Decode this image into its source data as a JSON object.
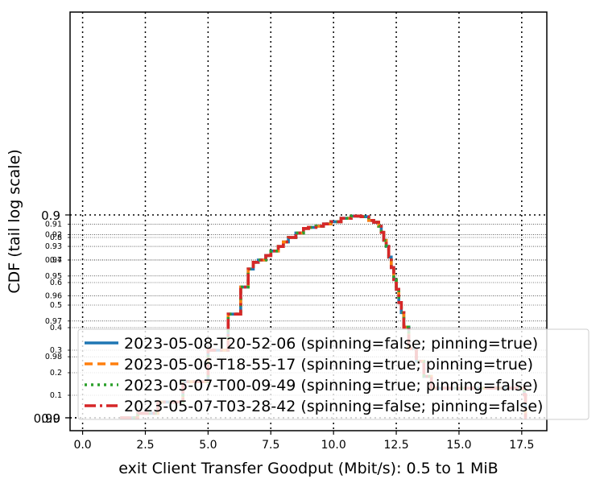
{
  "chart_data": {
    "type": "line",
    "xlabel": "exit Client Transfer Goodput (Mbit/s): 0.5 to 1 MiB",
    "ylabel": "CDF (tail log scale)",
    "xlim": [
      -0.5,
      18.5
    ],
    "x_ticks": [
      0,
      2.5,
      5,
      7.5,
      10,
      12.5,
      15,
      17.5
    ],
    "x_tick_labels": [
      "0.0",
      "2.5",
      "5.0",
      "7.5",
      "10.0",
      "12.5",
      "15.0",
      "17.5"
    ],
    "y_scale": "linear below 0.9, log-tail above 0.9",
    "y_major_ticks": [
      0.0,
      0.9,
      0.99
    ],
    "y_major_labels": [
      "0.0",
      "0.9",
      "0.99"
    ],
    "y_minor_ticks": [
      0.1,
      0.2,
      0.3,
      0.4,
      0.5,
      0.6,
      0.7,
      0.8,
      0.91,
      0.92,
      0.93,
      0.94,
      0.95,
      0.96,
      0.97,
      0.98
    ],
    "y_minor_labels": [
      "0.1",
      "0.2",
      "0.3",
      "0.4",
      "0.5",
      "0.6",
      "0.7",
      "0.8",
      "0.91",
      "0.92",
      "0.93",
      "0.94",
      "0.95",
      "0.96",
      "0.97",
      "0.98"
    ],
    "grid": true,
    "legend_position": "lower-right",
    "series": [
      {
        "name": "2023-05-08-T20-52-06 (spinning=false; pinning=true)",
        "color": "#1f77b4",
        "style": "solid"
      },
      {
        "name": "2023-05-06-T18-55-17 (spinning=true; pinning=true)",
        "color": "#ff7f0e",
        "style": "dashed"
      },
      {
        "name": "2023-05-07-T00-09-49 (spinning=true; pinning=false)",
        "color": "#2ca02c",
        "style": "dotted"
      },
      {
        "name": "2023-05-07-T03-28-42 (spinning=false; pinning=false)",
        "color": "#d62728",
        "style": "dashdot"
      }
    ],
    "curve": {
      "x": [
        1.5,
        2.2,
        3.0,
        4.0,
        5.0,
        5.8,
        6.3,
        6.6,
        6.8,
        7.0,
        7.3,
        7.5,
        7.8,
        8.0,
        8.2,
        8.5,
        8.8,
        9.0,
        9.3,
        9.6,
        9.9,
        10.3,
        10.7,
        11.1,
        11.4,
        11.6,
        11.8,
        11.9,
        12.0,
        12.1,
        12.2,
        12.3,
        12.4,
        12.5,
        12.6,
        12.7,
        12.8,
        13.0,
        13.3,
        13.6,
        13.9,
        14.5,
        15.5,
        16.5,
        17.3,
        17.6,
        17.65,
        17.7
      ],
      "y": [
        0.0,
        0.02,
        0.07,
        0.16,
        0.3,
        0.46,
        0.58,
        0.66,
        0.69,
        0.7,
        0.72,
        0.74,
        0.76,
        0.78,
        0.8,
        0.82,
        0.84,
        0.845,
        0.85,
        0.86,
        0.87,
        0.885,
        0.895,
        0.902,
        0.906,
        0.908,
        0.912,
        0.918,
        0.925,
        0.93,
        0.938,
        0.945,
        0.952,
        0.957,
        0.963,
        0.967,
        0.972,
        0.978,
        0.981,
        0.984,
        0.986,
        0.986,
        0.986,
        0.986,
        0.986,
        0.987,
        0.99,
        0.99
      ]
    }
  }
}
